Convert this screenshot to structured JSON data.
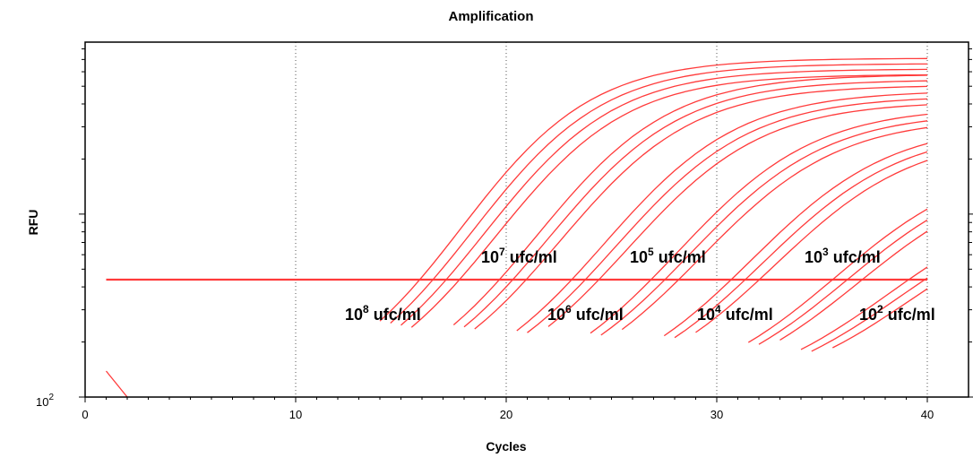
{
  "chart_data": {
    "type": "line",
    "title": "Amplification",
    "xlabel": "Cycles",
    "ylabel": "RFU",
    "xlim": [
      0,
      40
    ],
    "x_ticks": [
      0,
      10,
      20,
      30,
      40
    ],
    "y_scale": "log",
    "y_bottom_tick_label": {
      "base": "10",
      "exponent": "2"
    },
    "grid": "vertical dotted at each x tick",
    "line_color": "#ff3b3b",
    "threshold": {
      "label": "",
      "x_range": [
        1,
        40
      ],
      "relative_level": 0.5
    },
    "curve_groups": [
      {
        "concentration_label": {
          "base": "10",
          "exponent": "8",
          "unit": "ufc/ml"
        },
        "ct_approx": 17.0,
        "replicates": 4
      },
      {
        "concentration_label": {
          "base": "10",
          "exponent": "7",
          "unit": "ufc/ml"
        },
        "ct_approx": 20.3,
        "replicates": 3
      },
      {
        "concentration_label": {
          "base": "10",
          "exponent": "6",
          "unit": "ufc/ml"
        },
        "ct_approx": 23.5,
        "replicates": 3
      },
      {
        "concentration_label": {
          "base": "10",
          "exponent": "5",
          "unit": "ufc/ml"
        },
        "ct_approx": 27.0,
        "replicates": 3
      },
      {
        "concentration_label": {
          "base": "10",
          "exponent": "4",
          "unit": "ufc/ml"
        },
        "ct_approx": 30.5,
        "replicates": 3
      },
      {
        "concentration_label": {
          "base": "10",
          "exponent": "3",
          "unit": "ufc/ml"
        },
        "ct_approx": 34.5,
        "replicates": 3
      },
      {
        "concentration_label": {
          "base": "10",
          "exponent": "2",
          "unit": "ufc/ml"
        },
        "ct_approx": 37.0,
        "replicates": 3
      }
    ]
  }
}
